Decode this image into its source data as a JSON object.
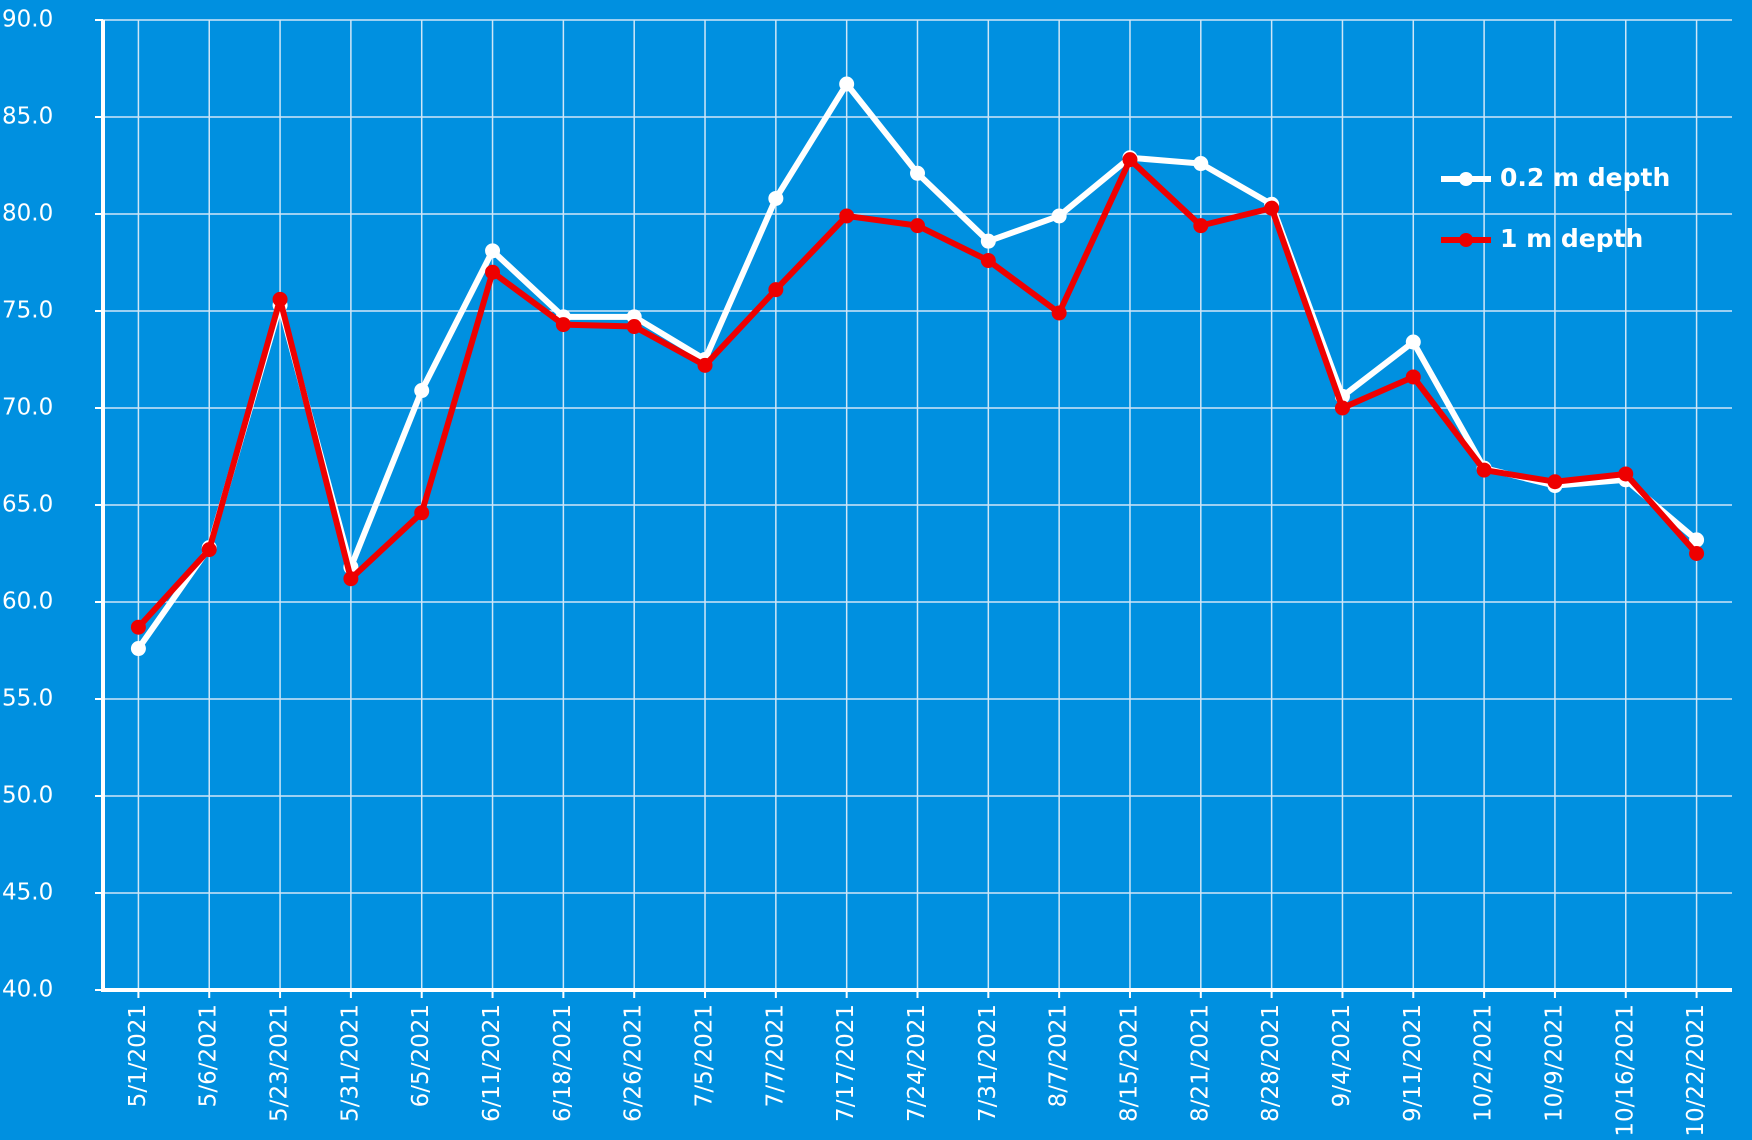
{
  "chart_data": {
    "type": "line",
    "categories": [
      "5/1/2021",
      "5/6/2021",
      "5/23/2021",
      "5/31/2021",
      "6/5/2021",
      "6/11/2021",
      "6/18/2021",
      "6/26/2021",
      "7/5/2021",
      "7/7/2021",
      "7/17/2021",
      "7/24/2021",
      "7/31/2021",
      "8/7/2021",
      "8/15/2021",
      "8/21/2021",
      "8/28/2021",
      "9/4/2021",
      "9/11/2021",
      "10/2/2021",
      "10/9/2021",
      "10/16/2021",
      "10/22/2021"
    ],
    "series": [
      {
        "name": "0.2 m depth",
        "color": "#ffffff",
        "values": [
          57.6,
          62.8,
          75.3,
          61.8,
          70.9,
          78.1,
          74.7,
          74.7,
          72.5,
          80.8,
          86.7,
          82.1,
          78.6,
          79.9,
          82.9,
          82.6,
          80.5,
          70.6,
          73.4,
          66.9,
          66.0,
          66.3,
          63.2
        ]
      },
      {
        "name": "1 m depth",
        "color": "#ee0000",
        "values": [
          58.7,
          62.7,
          75.6,
          61.2,
          64.6,
          77.0,
          74.3,
          74.2,
          72.2,
          76.1,
          79.9,
          79.4,
          77.6,
          74.9,
          82.8,
          79.4,
          80.3,
          70.0,
          71.6,
          66.8,
          66.2,
          66.6,
          62.5
        ]
      }
    ],
    "ylim": [
      40,
      90
    ],
    "yticks": [
      {
        "value": 40,
        "label": "40.0"
      },
      {
        "value": 45,
        "label": "45.0"
      },
      {
        "value": 50,
        "label": "50.0"
      },
      {
        "value": 55,
        "label": "55.0"
      },
      {
        "value": 60,
        "label": "60.0"
      },
      {
        "value": 65,
        "label": "65.0"
      },
      {
        "value": 70,
        "label": "70.0"
      },
      {
        "value": 75,
        "label": "75.0"
      },
      {
        "value": 80,
        "label": "80.0"
      },
      {
        "value": 85,
        "label": "85.0"
      },
      {
        "value": 90,
        "label": "90.0"
      }
    ],
    "grid": true,
    "legend": "upper right"
  }
}
